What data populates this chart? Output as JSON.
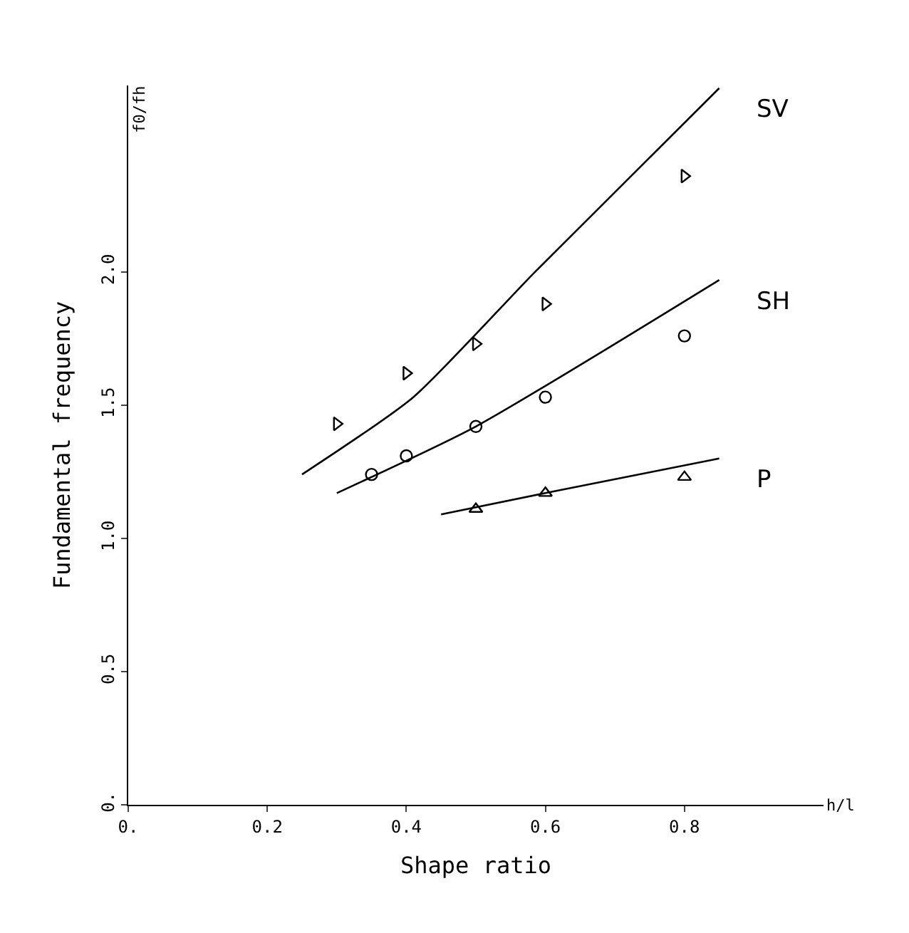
{
  "chart_data": {
    "type": "scatter",
    "xlabel": "Shape ratio",
    "ylabel": "Fundamental frequency",
    "annotations": [
      "f0/fh",
      "h/l"
    ],
    "xlim": [
      0,
      1.0
    ],
    "ylim": [
      0,
      2.7
    ],
    "xticks": [
      {
        "value": 0,
        "label": "0."
      },
      0.2,
      0.4,
      0.6,
      0.8
    ],
    "yticks": [
      {
        "value": 0,
        "label": "0."
      },
      0.5,
      {
        "value": 1,
        "label": "1.0"
      },
      1.5,
      {
        "value": 2,
        "label": "2.0"
      }
    ],
    "series": [
      {
        "marker": "triangle-right",
        "color": "#000000",
        "x": [
          0.3,
          0.4,
          0.5,
          0.6,
          0.8
        ],
        "values": [
          1.43,
          1.62,
          1.73,
          1.88,
          2.36
        ]
      },
      {
        "marker": "circle",
        "color": "#000000",
        "x": [
          0.35,
          0.4,
          0.5,
          0.6,
          0.8
        ],
        "values": [
          1.24,
          1.31,
          1.42,
          1.53,
          1.76
        ]
      },
      {
        "marker": "triangle",
        "color": "#000000",
        "x": [
          0.5,
          0.6,
          0.8
        ],
        "values": [
          1.11,
          1.17,
          1.23
        ]
      },
      {
        "type": "line",
        "name": "SV",
        "color": "#000000",
        "x": [
          0.25,
          0.41,
          0.585,
          0.85
        ],
        "values": [
          1.24,
          1.53,
          2.0,
          2.69
        ]
      },
      {
        "type": "line",
        "name": "SH",
        "color": "#000000",
        "x": [
          0.3,
          0.5,
          0.85
        ],
        "values": [
          1.17,
          1.42,
          1.97
        ]
      },
      {
        "type": "line",
        "name": "P",
        "color": "#000000",
        "x": [
          0.45,
          0.6,
          0.85
        ],
        "values": [
          1.09,
          1.17,
          1.3
        ]
      }
    ]
  }
}
